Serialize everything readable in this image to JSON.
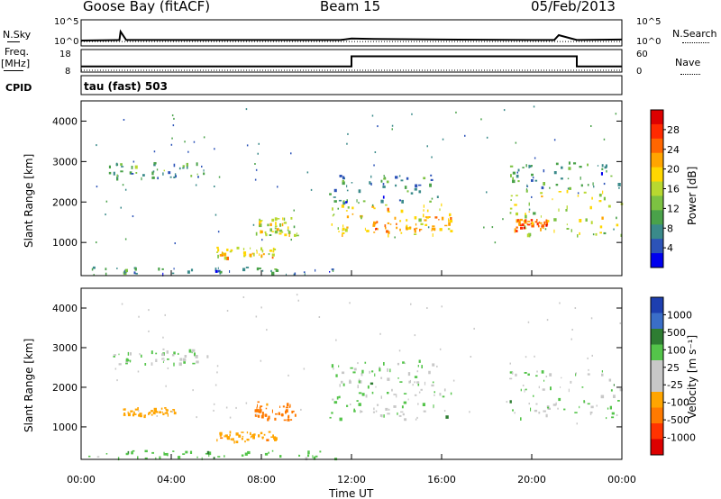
{
  "header": {
    "station": "Goose Bay (fitACF)",
    "beam": "Beam 15",
    "date": "05/Feb/2013"
  },
  "left_labels": {
    "nsky": "N.Sky",
    "freq": "Freq.",
    "mhz": "[MHz]",
    "cpid": "CPID"
  },
  "right_labels": {
    "nsearch": "N.Search",
    "nave": "Nave"
  },
  "cpid_text": "tau (fast) 503",
  "ticks": {
    "noise_left": [
      "10^5",
      "10^0"
    ],
    "noise_right": [
      "10^5",
      "10^0"
    ],
    "freq_left": [
      "18",
      "8"
    ],
    "freq_right": [
      "60",
      "0"
    ],
    "range": [
      "4000",
      "3000",
      "2000",
      "1000"
    ],
    "time": [
      "00:00",
      "04:00",
      "08:00",
      "12:00",
      "16:00",
      "20:00",
      "00:00"
    ]
  },
  "axes": {
    "ylabel": "Slant Range [km]",
    "xlabel": "Time UT"
  },
  "colorbars": {
    "power": {
      "label": "Power [dB]",
      "ticks": [
        "28",
        "24",
        "20",
        "16",
        "12",
        "8",
        "4"
      ]
    },
    "velocity": {
      "label": "Velocity [m s⁻¹]",
      "ticks": [
        "1000",
        "500",
        "100",
        "25",
        "-25",
        "-100",
        "-500",
        "-1000"
      ]
    }
  },
  "colors": {
    "power_scale": [
      "#0000ee",
      "#2c53b8",
      "#3a8a8a",
      "#4aa24a",
      "#7cc242",
      "#b8d830",
      "#ffd700",
      "#ffa500",
      "#ff6600",
      "#ff2a00",
      "#dd0000"
    ],
    "velocity_scale": [
      "#1d3fb0",
      "#3a6ec8",
      "#2e7d32",
      "#54c44a",
      "#c8c8c8",
      "#c8c8c8",
      "#ffa500",
      "#ff7a00",
      "#ff3300",
      "#dd0000"
    ]
  },
  "chart_data": [
    {
      "type": "line",
      "name": "noise",
      "x_range_hours": [
        0,
        24
      ],
      "y_scale": "log",
      "ylim": [
        "10^0",
        "10^5"
      ],
      "series": [
        {
          "name": "N.Sky",
          "x": [
            0,
            1.7,
            1.75,
            2,
            6,
            10,
            11.5,
            12,
            13,
            16,
            20,
            21,
            21.2,
            22,
            24
          ],
          "y": [
            0.8,
            0.9,
            2.6,
            0.9,
            0.9,
            0.9,
            0.9,
            1.2,
            1.1,
            1.0,
            0.9,
            0.9,
            1.9,
            0.9,
            1.0
          ]
        },
        {
          "name": "N.Search",
          "x": [
            0,
            24
          ],
          "y": [
            0.6,
            0.6
          ]
        }
      ]
    },
    {
      "type": "line",
      "name": "frequency",
      "x_range_hours": [
        0,
        24
      ],
      "ylim_freq_mhz": [
        8,
        18
      ],
      "ylim_nave": [
        0,
        60
      ],
      "series": [
        {
          "name": "Freq.",
          "x": [
            0,
            12,
            12,
            22,
            22,
            24
          ],
          "y": [
            10.5,
            10.5,
            15,
            15,
            10.5,
            10.5
          ]
        },
        {
          "name": "Nave",
          "x": [
            0,
            24
          ],
          "y": [
            8,
            8
          ]
        }
      ]
    },
    {
      "type": "heatmap",
      "name": "power",
      "x_range_hours": [
        0,
        24
      ],
      "ylim_km": [
        180,
        4500
      ],
      "colorbar_range_db": [
        0,
        30
      ],
      "regions": [
        {
          "t0": 1.2,
          "t1": 5.6,
          "r0": 2600,
          "r1": 3000,
          "val": 8
        },
        {
          "t0": 6.0,
          "t1": 8.6,
          "r0": 650,
          "r1": 900,
          "val": 18
        },
        {
          "t0": 7.7,
          "t1": 9.6,
          "r0": 1150,
          "r1": 1650,
          "val": 16
        },
        {
          "t0": 11.0,
          "t1": 16.4,
          "r0": 1200,
          "r1": 2000,
          "val": 17
        },
        {
          "t0": 12.5,
          "t1": 16.4,
          "r0": 1300,
          "r1": 1650,
          "val": 22
        },
        {
          "t0": 11.0,
          "t1": 15.8,
          "r0": 2000,
          "r1": 2700,
          "val": 7
        },
        {
          "t0": 19.0,
          "t1": 24.0,
          "r0": 1200,
          "r1": 2300,
          "val": 15
        },
        {
          "t0": 19.2,
          "t1": 20.7,
          "r0": 1300,
          "r1": 1600,
          "val": 24
        },
        {
          "t0": 19.0,
          "t1": 24.0,
          "r0": 2300,
          "r1": 3000,
          "val": 8
        },
        {
          "t0": 0.1,
          "t1": 11.4,
          "r0": 220,
          "r1": 420,
          "val": 6
        }
      ]
    },
    {
      "type": "heatmap",
      "name": "velocity",
      "x_range_hours": [
        0,
        24
      ],
      "ylim_km": [
        180,
        4500
      ],
      "colorbar_range_ms": [
        -1000,
        1000
      ],
      "regions": [
        {
          "t0": 1.2,
          "t1": 5.6,
          "r0": 2600,
          "r1": 3000,
          "val": 0
        },
        {
          "t0": 6.0,
          "t1": 8.6,
          "r0": 650,
          "r1": 900,
          "val": -80
        },
        {
          "t0": 7.7,
          "t1": 9.6,
          "r0": 1150,
          "r1": 1650,
          "val": -150
        },
        {
          "t0": 11.0,
          "t1": 16.4,
          "r0": 1200,
          "r1": 2000,
          "val": 0
        },
        {
          "t0": 11.0,
          "t1": 15.8,
          "r0": 2000,
          "r1": 2700,
          "val": 0
        },
        {
          "t0": 19.0,
          "t1": 24.0,
          "r0": 1200,
          "r1": 2500,
          "val": 0
        },
        {
          "t0": 1.8,
          "t1": 4.4,
          "r0": 1300,
          "r1": 1500,
          "val": -60
        },
        {
          "t0": 0.1,
          "t1": 11.4,
          "r0": 220,
          "r1": 420,
          "val": 10
        }
      ]
    }
  ]
}
